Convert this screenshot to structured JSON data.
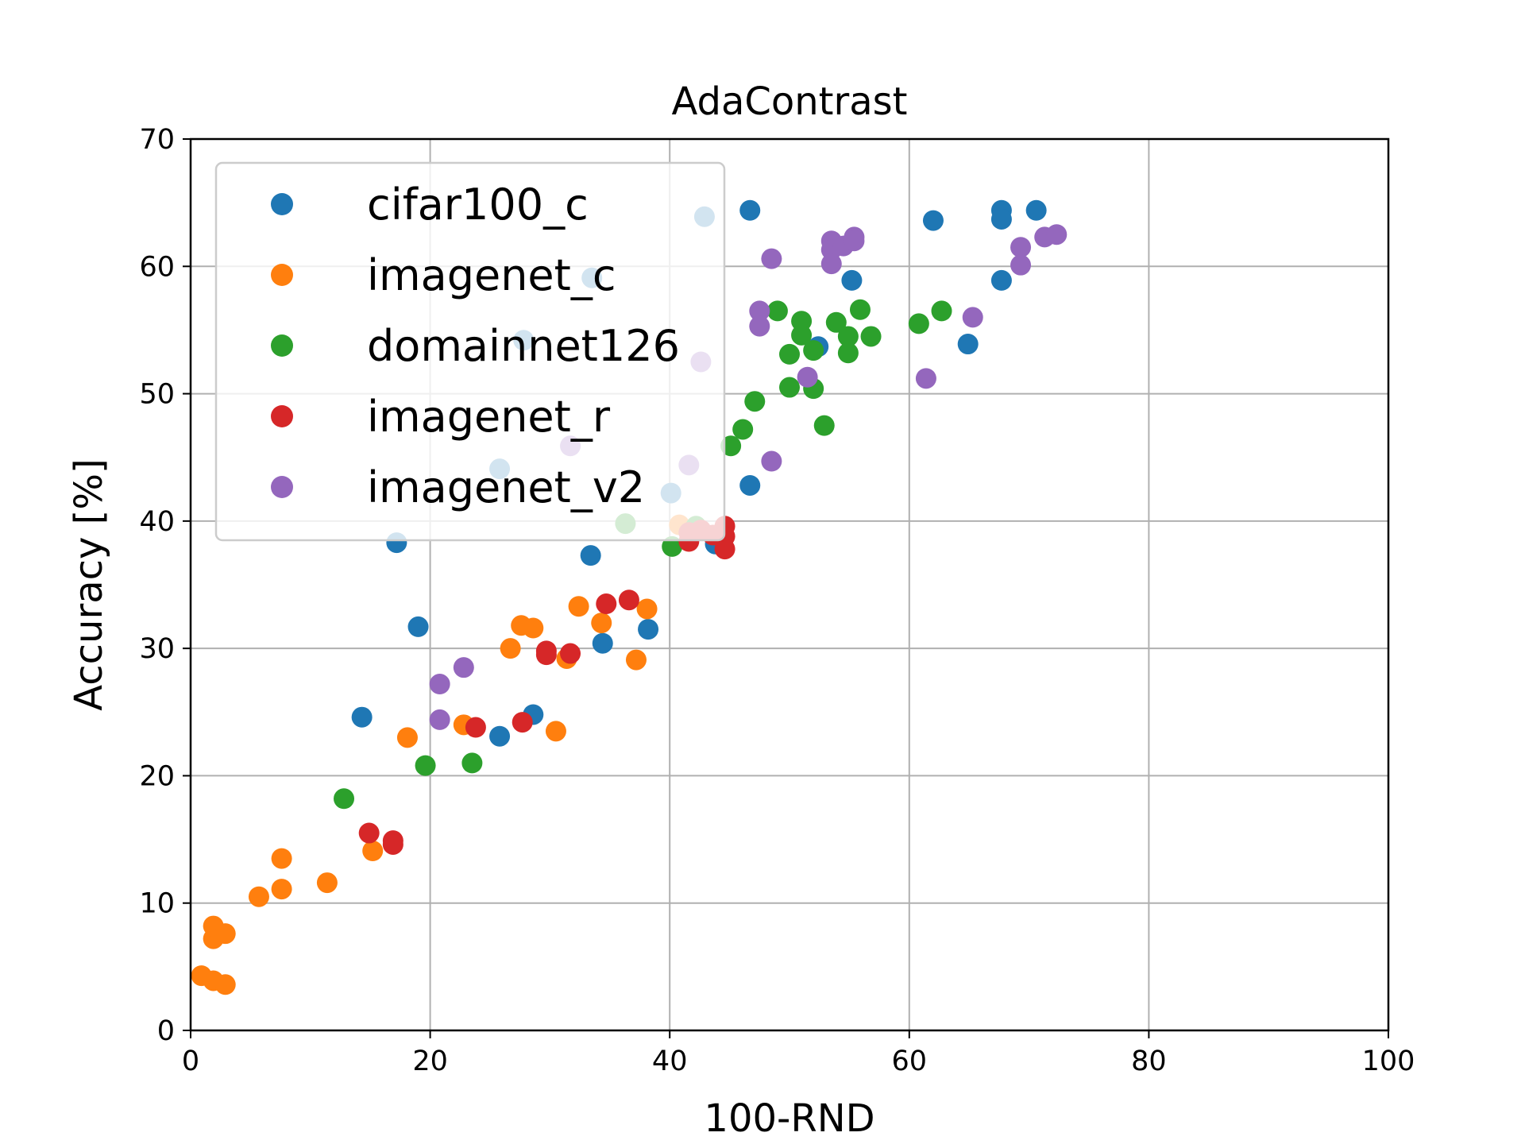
{
  "chart_data": {
    "type": "scatter",
    "title": "AdaContrast",
    "xlabel": "100-RND",
    "ylabel": "Accuracy [%]",
    "xlim": [
      0,
      100
    ],
    "ylim": [
      0,
      70
    ],
    "xticks": [
      "0",
      "20",
      "40",
      "60",
      "80",
      "100"
    ],
    "yticks": [
      "0",
      "10",
      "20",
      "30",
      "40",
      "50",
      "60",
      "70"
    ],
    "grid": true,
    "legend_position": "top-left",
    "series": [
      {
        "name": "cifar100_c",
        "color": "#1f77b4",
        "points": [
          [
            14.3,
            24.6
          ],
          [
            17.2,
            38.3
          ],
          [
            19.0,
            31.7
          ],
          [
            25.8,
            23.1
          ],
          [
            25.8,
            44.1
          ],
          [
            27.8,
            54.2
          ],
          [
            28.6,
            24.8
          ],
          [
            33.4,
            37.3
          ],
          [
            33.5,
            59.1
          ],
          [
            34.4,
            30.4
          ],
          [
            38.2,
            31.5
          ],
          [
            40.1,
            42.2
          ],
          [
            42.9,
            63.9
          ],
          [
            43.8,
            38.2
          ],
          [
            46.7,
            64.4
          ],
          [
            46.7,
            42.8
          ],
          [
            52.4,
            53.7
          ],
          [
            55.2,
            58.9
          ],
          [
            62.0,
            63.6
          ],
          [
            64.9,
            53.9
          ],
          [
            67.7,
            64.4
          ],
          [
            67.7,
            63.7
          ],
          [
            67.7,
            58.9
          ],
          [
            70.6,
            64.4
          ]
        ]
      },
      {
        "name": "imagenet_c",
        "color": "#ff7f0e",
        "points": [
          [
            0.9,
            4.3
          ],
          [
            1.9,
            3.9
          ],
          [
            2.9,
            3.6
          ],
          [
            1.9,
            7.2
          ],
          [
            1.9,
            8.2
          ],
          [
            2.9,
            7.6
          ],
          [
            5.7,
            10.5
          ],
          [
            7.6,
            11.1
          ],
          [
            7.6,
            13.5
          ],
          [
            11.4,
            11.6
          ],
          [
            15.2,
            14.1
          ],
          [
            18.1,
            23.0
          ],
          [
            22.8,
            24.0
          ],
          [
            26.7,
            30.0
          ],
          [
            27.6,
            31.8
          ],
          [
            28.6,
            31.6
          ],
          [
            30.5,
            23.5
          ],
          [
            31.4,
            29.2
          ],
          [
            32.4,
            33.3
          ],
          [
            34.3,
            32.0
          ],
          [
            37.2,
            29.1
          ],
          [
            38.1,
            33.1
          ],
          [
            40.8,
            39.7
          ]
        ]
      },
      {
        "name": "domainnet126",
        "color": "#2ca02c",
        "points": [
          [
            12.8,
            18.2
          ],
          [
            19.6,
            20.8
          ],
          [
            23.5,
            21.0
          ],
          [
            36.3,
            39.8
          ],
          [
            40.2,
            38.0
          ],
          [
            42.2,
            39.6
          ],
          [
            45.1,
            45.9
          ],
          [
            46.1,
            47.2
          ],
          [
            47.1,
            49.4
          ],
          [
            49.0,
            56.5
          ],
          [
            50.0,
            53.1
          ],
          [
            50.0,
            50.5
          ],
          [
            51.0,
            55.7
          ],
          [
            51.0,
            54.6
          ],
          [
            52.0,
            53.4
          ],
          [
            52.0,
            50.4
          ],
          [
            52.9,
            47.5
          ],
          [
            53.9,
            55.6
          ],
          [
            54.9,
            54.5
          ],
          [
            54.9,
            53.2
          ],
          [
            55.9,
            56.6
          ],
          [
            56.8,
            54.5
          ],
          [
            60.8,
            55.5
          ],
          [
            62.7,
            56.5
          ]
        ]
      },
      {
        "name": "imagenet_r",
        "color": "#d62728",
        "points": [
          [
            14.9,
            15.5
          ],
          [
            16.9,
            14.9
          ],
          [
            16.9,
            14.6
          ],
          [
            23.8,
            23.8
          ],
          [
            27.7,
            24.2
          ],
          [
            29.7,
            29.8
          ],
          [
            29.7,
            29.5
          ],
          [
            31.7,
            29.6
          ],
          [
            34.7,
            33.5
          ],
          [
            36.6,
            33.8
          ],
          [
            41.6,
            39.1
          ],
          [
            41.6,
            38.4
          ],
          [
            42.6,
            39.3
          ],
          [
            43.6,
            38.9
          ],
          [
            44.6,
            39.6
          ],
          [
            44.6,
            38.8
          ],
          [
            44.6,
            37.8
          ]
        ]
      },
      {
        "name": "imagenet_v2",
        "color": "#9467bd",
        "points": [
          [
            20.8,
            27.2
          ],
          [
            20.8,
            24.4
          ],
          [
            22.8,
            28.5
          ],
          [
            31.7,
            45.9
          ],
          [
            41.6,
            44.4
          ],
          [
            42.6,
            52.5
          ],
          [
            47.5,
            56.5
          ],
          [
            47.5,
            55.3
          ],
          [
            48.5,
            60.6
          ],
          [
            48.5,
            44.7
          ],
          [
            51.5,
            51.3
          ],
          [
            53.5,
            62.0
          ],
          [
            53.5,
            61.3
          ],
          [
            53.5,
            60.2
          ],
          [
            54.5,
            61.6
          ],
          [
            55.4,
            62.3
          ],
          [
            55.4,
            62.0
          ],
          [
            61.4,
            51.2
          ],
          [
            65.3,
            56.0
          ],
          [
            69.3,
            61.5
          ],
          [
            69.3,
            60.1
          ],
          [
            71.3,
            62.3
          ],
          [
            72.3,
            62.5
          ]
        ]
      }
    ]
  }
}
